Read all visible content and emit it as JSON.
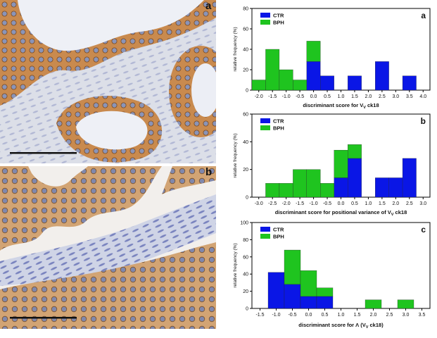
{
  "photos": [
    {
      "letter": "a"
    },
    {
      "letter": "b"
    }
  ],
  "colors": {
    "ctr": "#0a16e6",
    "bph": "#1fc41f"
  },
  "chart_data": [
    {
      "type": "bar",
      "stacked": true,
      "panel_letter": "a",
      "xlabel": "discriminant score for V",
      "xlabel_sub": "V",
      "xlabel_tail": " ck18",
      "ylabel": "relative frequency (%)",
      "xlim": [
        -2.25,
        4.25
      ],
      "ylim": [
        0,
        80
      ],
      "bin_width": 0.5,
      "xticks": [
        "-2.0",
        "-1.5",
        "-1.0",
        "-0.5",
        "0.0",
        "0.5",
        "1.0",
        "1.5",
        "2.0",
        "2.5",
        "3.0",
        "3.5",
        "4.0"
      ],
      "yticks": [
        "0",
        "20",
        "40",
        "60",
        "80"
      ],
      "legend": [
        "CTR",
        "BPH"
      ],
      "legend_position": "top-left",
      "series": [
        {
          "name": "CTR",
          "x": [
            0.0,
            0.5,
            1.5,
            2.5,
            3.5
          ],
          "values": [
            28,
            14,
            14,
            28,
            14
          ]
        },
        {
          "name": "BPH",
          "x": [
            -2.0,
            -1.5,
            -1.0,
            -0.5,
            0.0
          ],
          "values": [
            10,
            40,
            20,
            10,
            20
          ]
        }
      ]
    },
    {
      "type": "bar",
      "stacked": true,
      "panel_letter": "b",
      "xlabel": "discriminant score for positional variance of V",
      "xlabel_sub": "V",
      "xlabel_tail": " ck18",
      "ylabel": "relative frequency (%)",
      "xlim": [
        -3.25,
        3.25
      ],
      "ylim": [
        0,
        60
      ],
      "bin_width": 0.5,
      "xticks": [
        "-3.0",
        "-2.5",
        "-2.0",
        "-1.5",
        "-1.0",
        "-0.5",
        "0.0",
        "0.5",
        "1.0",
        "1.5",
        "2.0",
        "2.5",
        "3.0"
      ],
      "yticks": [
        "0",
        "20",
        "40",
        "60"
      ],
      "legend": [
        "CTR",
        "BPH"
      ],
      "legend_position": "top-left",
      "series": [
        {
          "name": "CTR",
          "x": [
            0.0,
            0.5,
            1.5,
            2.0,
            2.5
          ],
          "values": [
            14,
            28,
            14,
            14,
            28
          ]
        },
        {
          "name": "BPH",
          "x": [
            -2.5,
            -2.0,
            -1.5,
            -1.0,
            -0.5,
            0.0,
            0.5
          ],
          "values": [
            10,
            10,
            20,
            20,
            10,
            20,
            10
          ]
        }
      ]
    },
    {
      "type": "bar",
      "stacked": true,
      "panel_letter": "c",
      "xlabel": "discriminant score for Λ (V",
      "xlabel_sub": "V",
      "xlabel_tail": " ck18)",
      "ylabel": "relative frequency (%)",
      "xlim": [
        -1.75,
        3.75
      ],
      "ylim": [
        0,
        100
      ],
      "bin_width": 0.5,
      "xticks": [
        "-1.5",
        "-1.0",
        "-0.5",
        "0.0",
        "0.5",
        "1.0",
        "1.5",
        "2.0",
        "2.5",
        "3.0",
        "3.5"
      ],
      "yticks": [
        "0",
        "20",
        "40",
        "60",
        "80",
        "100"
      ],
      "legend": [
        "CTR",
        "BPH"
      ],
      "legend_position": "top-left",
      "series": [
        {
          "name": "CTR",
          "x": [
            -1.0,
            -0.5,
            0.0,
            0.5
          ],
          "values": [
            42,
            28,
            14,
            14
          ]
        },
        {
          "name": "BPH",
          "x": [
            -0.5,
            0.0,
            0.5,
            2.0,
            3.0
          ],
          "values": [
            40,
            30,
            10,
            10,
            10
          ]
        }
      ]
    }
  ]
}
